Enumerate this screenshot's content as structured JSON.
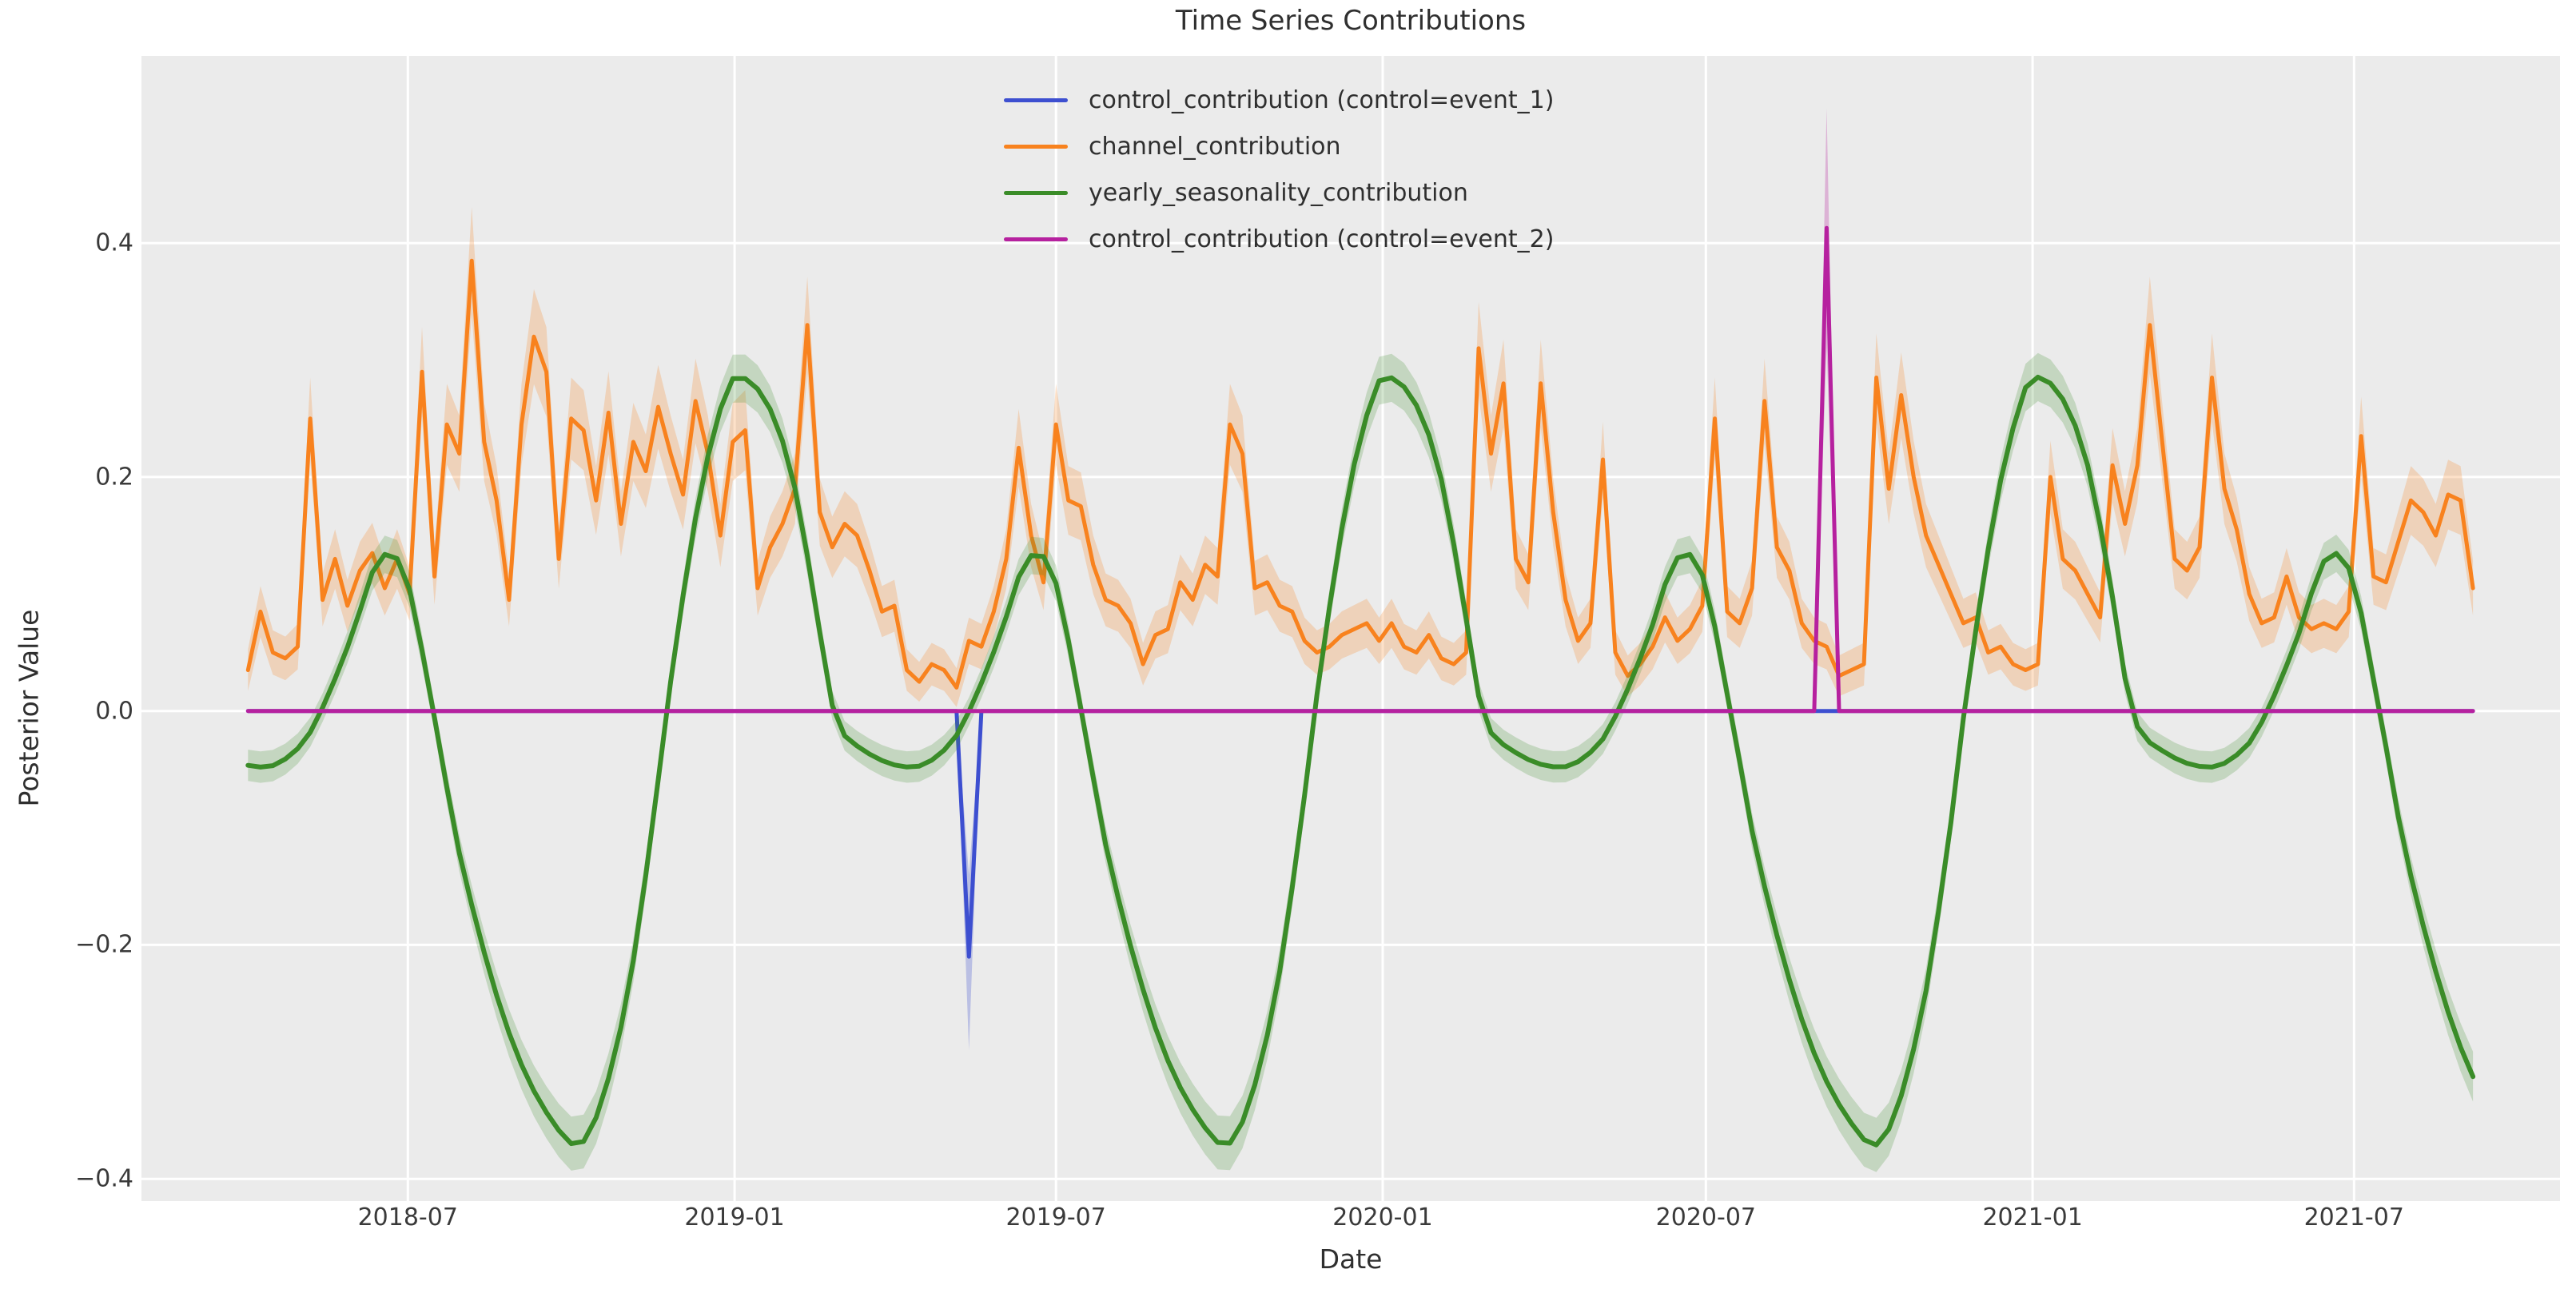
{
  "figure": {
    "title": "Time Series Contributions",
    "xlabel": "Date",
    "ylabel": "Posterior Value"
  },
  "chart_data": {
    "type": "line",
    "title": "Time Series Contributions",
    "xlabel": "Date",
    "ylabel": "Posterior Value",
    "grid": "on",
    "background": {
      "figure": "#ffffff",
      "axes": "#ebebeb",
      "gridline": "#ffffff"
    },
    "x_axis": {
      "tick_labels": [
        "2018-07",
        "2019-01",
        "2019-07",
        "2020-01",
        "2020-07",
        "2021-01",
        "2021-07"
      ],
      "tick_dates": [
        "2018-07-01",
        "2019-01-01",
        "2019-07-01",
        "2020-01-01",
        "2020-07-01",
        "2021-01-01",
        "2021-07-01"
      ],
      "xlim": [
        "2018-02-01",
        "2021-10-25"
      ]
    },
    "y_axis": {
      "tick_values": [
        0.4,
        0.2,
        0.0,
        -0.2,
        -0.4
      ],
      "tick_labels": [
        "0.4",
        "0.2",
        "0.0",
        "−0.2",
        "−0.4"
      ],
      "ylim": [
        -0.419,
        0.56
      ]
    },
    "weekly": {
      "start": "2018-04-02",
      "end": "2021-09-06",
      "step_days": 7
    },
    "draw_order": [
      "control_event_1",
      "channel",
      "yearly_seasonality",
      "control_event_2"
    ],
    "legend": {
      "position": "upper center-left, inside axes",
      "frame": false,
      "entries": [
        "control_event_1",
        "channel",
        "yearly_seasonality",
        "control_event_2"
      ]
    },
    "series": {
      "control_event_1": {
        "label": "control_contribution (control=event_1)",
        "color": "#3d4fd0",
        "band_alpha": 0.28,
        "line_width": 5,
        "type": "event",
        "baseline": 0,
        "events": [
          {
            "date": "2019-05-13",
            "value": -0.21,
            "band": [
              -0.29,
              -0.14
            ]
          }
        ]
      },
      "channel": {
        "label": "channel_contribution",
        "color": "#f8821e",
        "band_alpha": 0.24,
        "line_width": 5,
        "type": "values",
        "band_rule": {
          "base": 0.015,
          "scale": 0.08
        },
        "values": [
          0.035,
          0.085,
          0.05,
          0.045,
          0.055,
          0.25,
          0.095,
          0.13,
          0.09,
          0.12,
          0.135,
          0.105,
          0.13,
          0.1,
          0.29,
          0.115,
          0.245,
          0.22,
          0.385,
          0.23,
          0.18,
          0.095,
          0.245,
          0.32,
          0.29,
          0.13,
          0.25,
          0.24,
          0.18,
          0.255,
          0.16,
          0.23,
          0.205,
          0.26,
          0.22,
          0.185,
          0.265,
          0.22,
          0.15,
          0.23,
          0.24,
          0.105,
          0.14,
          0.16,
          0.19,
          0.33,
          0.17,
          0.14,
          0.16,
          0.15,
          0.12,
          0.085,
          0.09,
          0.035,
          0.025,
          0.04,
          0.035,
          0.02,
          0.06,
          0.055,
          0.085,
          0.13,
          0.225,
          0.15,
          0.11,
          0.245,
          0.18,
          0.175,
          0.125,
          0.095,
          0.09,
          0.075,
          0.04,
          0.065,
          0.07,
          0.11,
          0.095,
          0.125,
          0.115,
          0.245,
          0.22,
          0.105,
          0.11,
          0.09,
          0.085,
          0.06,
          0.05,
          0.055,
          0.065,
          0.07,
          0.075,
          0.06,
          0.075,
          0.055,
          0.05,
          0.065,
          0.045,
          0.04,
          0.05,
          0.31,
          0.22,
          0.28,
          0.13,
          0.11,
          0.28,
          0.17,
          0.095,
          0.06,
          0.075,
          0.215,
          0.05,
          0.03,
          0.04,
          0.055,
          0.08,
          0.06,
          0.07,
          0.09,
          0.25,
          0.085,
          0.075,
          0.105,
          0.265,
          0.14,
          0.12,
          0.075,
          0.06,
          0.055,
          0.03,
          0.035,
          0.04,
          0.285,
          0.19,
          0.27,
          0.2,
          0.15,
          0.125,
          0.1,
          0.075,
          0.08,
          0.05,
          0.055,
          0.04,
          0.035,
          0.04,
          0.2,
          0.13,
          0.12,
          0.1,
          0.08,
          0.21,
          0.16,
          0.21,
          0.33,
          0.23,
          0.13,
          0.12,
          0.14,
          0.285,
          0.19,
          0.155,
          0.1,
          0.075,
          0.08,
          0.115,
          0.08,
          0.07,
          0.075,
          0.07,
          0.085,
          0.235,
          0.115,
          0.11,
          0.145,
          0.18,
          0.17,
          0.15,
          0.185,
          0.18,
          0.105
        ]
      },
      "yearly_seasonality": {
        "label": "yearly_seasonality_contribution",
        "color": "#3a8c28",
        "band_alpha": 0.22,
        "line_width": 6,
        "type": "seasonal",
        "period": "1 year",
        "band_rule": {
          "base": 0.012,
          "scale": 0.03
        },
        "anchors": [
          [
            0.0,
            0.285
          ],
          [
            0.045,
            0.268
          ],
          [
            0.085,
            0.21
          ],
          [
            0.118,
            0.115
          ],
          [
            0.153,
            0.0
          ],
          [
            0.195,
            -0.032
          ],
          [
            0.275,
            -0.048
          ],
          [
            0.33,
            -0.03
          ],
          [
            0.362,
            0.0
          ],
          [
            0.408,
            0.062
          ],
          [
            0.452,
            0.13
          ],
          [
            0.492,
            0.116
          ],
          [
            0.535,
            0.0
          ],
          [
            0.578,
            -0.128
          ],
          [
            0.65,
            -0.272
          ],
          [
            0.718,
            -0.35
          ],
          [
            0.77,
            -0.366
          ],
          [
            0.828,
            -0.262
          ],
          [
            0.872,
            -0.105
          ],
          [
            0.895,
            0.0
          ],
          [
            0.942,
            0.172
          ],
          [
            0.978,
            0.258
          ]
        ]
      },
      "control_event_2": {
        "label": "control_contribution (control=event_2)",
        "color": "#b6219f",
        "band_alpha": 0.28,
        "line_width": 5,
        "type": "event",
        "baseline": 0,
        "events": [
          {
            "date": "2020-09-07",
            "value": 0.413,
            "band": [
              0.31,
              0.515
            ]
          }
        ]
      }
    }
  }
}
